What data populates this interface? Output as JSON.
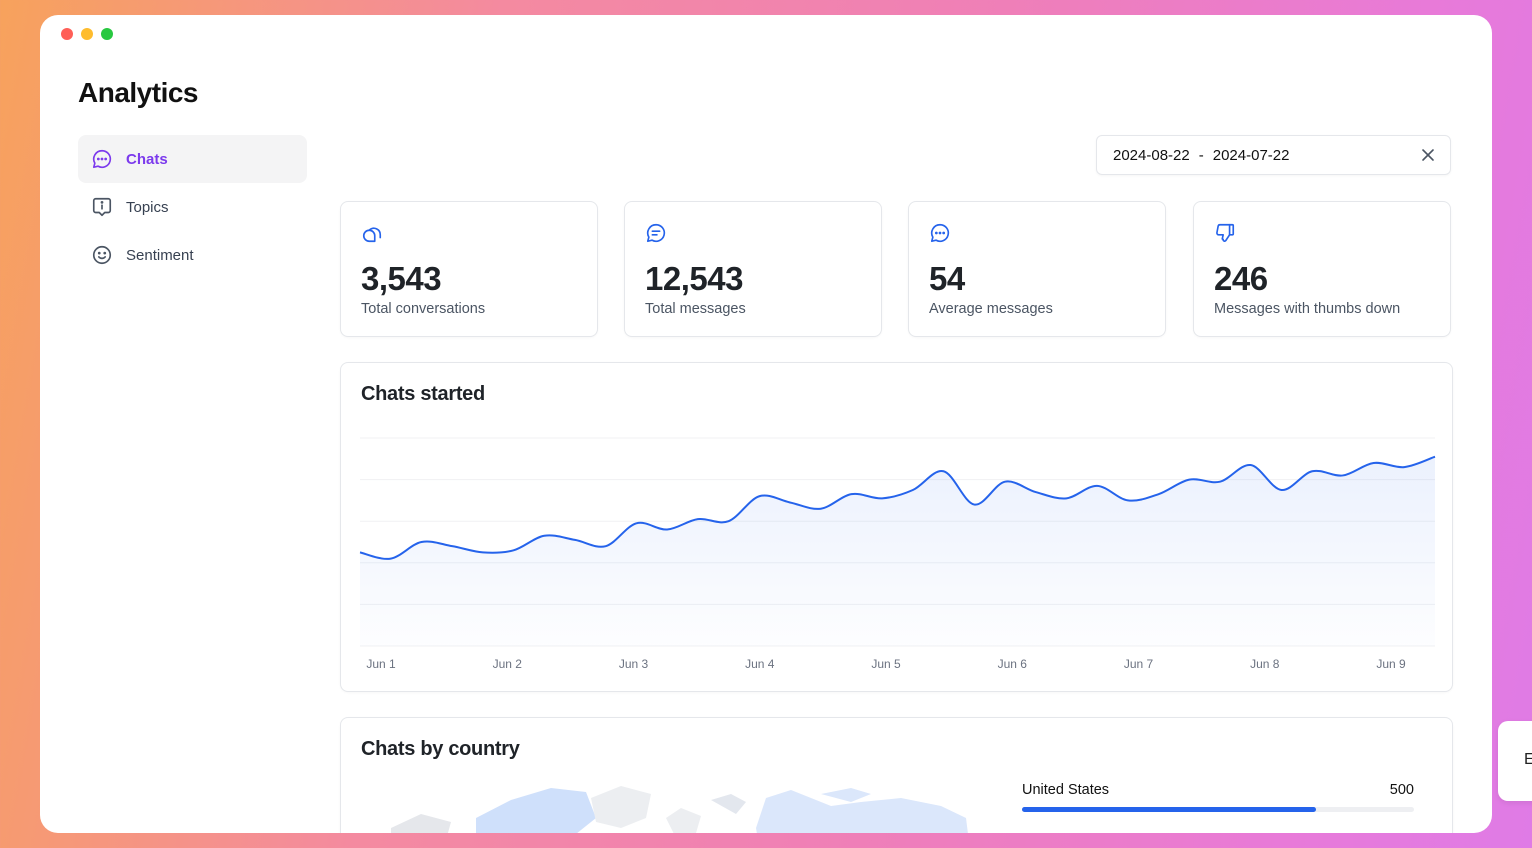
{
  "app": {
    "title": "Analytics"
  },
  "sidebar": {
    "items": [
      {
        "label": "Chats",
        "icon": "chat-bubble-icon",
        "active": true
      },
      {
        "label": "Topics",
        "icon": "info-bubble-icon",
        "active": false
      },
      {
        "label": "Sentiment",
        "icon": "smiley-icon",
        "active": false
      }
    ]
  },
  "date_range": {
    "start": "2024-08-22",
    "separator": "-",
    "end": "2024-07-22",
    "clear_icon": "close-icon"
  },
  "stats": [
    {
      "value": "3,543",
      "label": "Total conversations",
      "icon": "conversations-icon"
    },
    {
      "value": "12,543",
      "label": "Total messages",
      "icon": "message-lines-icon"
    },
    {
      "value": "54",
      "label": "Average messages",
      "icon": "message-dots-icon"
    },
    {
      "value": "246",
      "label": "Messages with thumbs down",
      "icon": "thumbs-down-icon"
    }
  ],
  "chats_started": {
    "title": "Chats started",
    "x_ticks": [
      "Jun 1",
      "Jun 2",
      "Jun 3",
      "Jun 4",
      "Jun 5",
      "Jun 6",
      "Jun 7",
      "Jun 8",
      "Jun 9"
    ]
  },
  "chart_data": {
    "type": "area",
    "title": "Chats started",
    "xlabel": "",
    "ylabel": "",
    "x_ticks": [
      "Jun 1",
      "Jun 2",
      "Jun 3",
      "Jun 4",
      "Jun 5",
      "Jun 6",
      "Jun 7",
      "Jun 8",
      "Jun 9"
    ],
    "ylim": [
      0,
      100
    ],
    "grid": true,
    "series": [
      {
        "values": [
          45,
          42,
          50,
          48,
          45,
          46,
          53,
          51,
          48,
          59,
          56,
          61,
          60,
          72,
          69,
          66,
          73,
          71,
          75,
          84,
          68,
          79,
          74,
          71,
          77,
          70,
          73,
          80,
          79,
          87,
          75,
          84,
          82,
          88,
          86,
          91
        ]
      }
    ],
    "color": "#2563eb"
  },
  "chats_by_country": {
    "title": "Chats by country",
    "countries": [
      {
        "name": "United States",
        "value": 500,
        "fraction": 0.75
      }
    ]
  },
  "peek_card": {
    "text": "E"
  }
}
